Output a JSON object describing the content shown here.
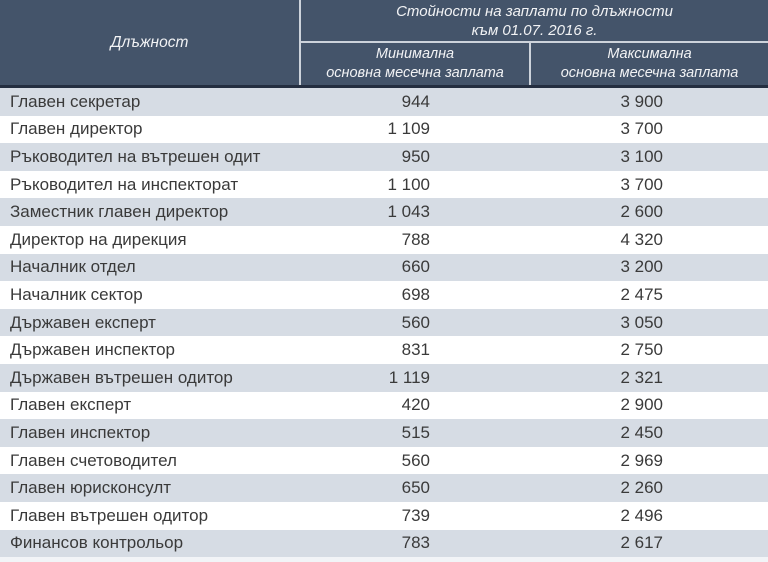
{
  "chart_data": {
    "type": "table",
    "title": "Стойности на заплати по длъжности към 01.07. 2016 г.",
    "columns": [
      "Длъжност",
      "Минимална основна месечна заплата",
      "Максимална основна месечна заплата"
    ],
    "categories": [
      "Главен секретар",
      "Главен директор",
      "Ръководител на вътрешен одит",
      "Ръководител на инспекторат",
      "Заместник главен директор",
      "Директор на дирекция",
      "Началник отдел",
      "Началник сектор",
      "Държавен експерт",
      "Държавен инспектор",
      "Държавен вътрешен одитор",
      "Главен експерт",
      "Главен инспектор",
      "Главен счетоводител",
      "Главен юрисконсулт",
      "Главен вътрешен одитор",
      "Финансов контрольор"
    ],
    "series": [
      {
        "name": "Минимална основна месечна заплата",
        "values": [
          944,
          1109,
          950,
          1100,
          1043,
          788,
          660,
          698,
          560,
          831,
          1119,
          420,
          515,
          560,
          650,
          739,
          783
        ]
      },
      {
        "name": "Максимална основна месечна заплата",
        "values": [
          3900,
          3700,
          3100,
          3700,
          2600,
          4320,
          3200,
          2475,
          3050,
          2750,
          2321,
          2900,
          2450,
          2969,
          2260,
          2496,
          2617
        ]
      }
    ]
  },
  "table": {
    "header": {
      "position_label": "Длъжност",
      "group_title_line1": "Стойности на заплати по длъжности",
      "group_title_line2": "към 01.07. 2016 г.",
      "min_col_line1": "Минимална",
      "min_col_line2": "основна месечна заплата",
      "max_col_line1": "Максимална",
      "max_col_line2": "основна месечна заплата"
    },
    "rows": [
      {
        "position": "Главен секретар",
        "min": "944",
        "max": "3 900"
      },
      {
        "position": "Главен директор",
        "min": "1 109",
        "max": "3 700"
      },
      {
        "position": "Ръководител на вътрешен одит",
        "min": "950",
        "max": "3 100"
      },
      {
        "position": "Ръководител на инспекторат",
        "min": "1 100",
        "max": "3 700"
      },
      {
        "position": "Заместник главен директор",
        "min": "1 043",
        "max": "2 600"
      },
      {
        "position": "Директор на дирекция",
        "min": "788",
        "max": "4 320"
      },
      {
        "position": "Началник отдел",
        "min": "660",
        "max": "3 200"
      },
      {
        "position": "Началник сектор",
        "min": "698",
        "max": "2 475"
      },
      {
        "position": "Държавен експерт",
        "min": "560",
        "max": "3 050"
      },
      {
        "position": "Държавен инспектор",
        "min": "831",
        "max": "2 750"
      },
      {
        "position": "Държавен вътрешен одитор",
        "min": "1 119",
        "max": "2 321"
      },
      {
        "position": "Главен експерт",
        "min": "420",
        "max": "2 900"
      },
      {
        "position": "Главен инспектор",
        "min": "515",
        "max": "2 450"
      },
      {
        "position": "Главен счетоводител",
        "min": "560",
        "max": "2 969"
      },
      {
        "position": "Главен юрисконсулт",
        "min": "650",
        "max": "2 260"
      },
      {
        "position": "Главен вътрешен одитор",
        "min": "739",
        "max": "2 496"
      },
      {
        "position": "Финансов контрольор",
        "min": "783",
        "max": "2 617"
      }
    ],
    "colors": {
      "header_bg": "#44546A",
      "header_text": "#F2F3F5",
      "header_border": "#242E40",
      "divider": "#CDD3DB",
      "stripe_bg": "#D6DCE4",
      "row_bg": "#FFFFFF",
      "body_text": "#3A3A3A"
    }
  }
}
